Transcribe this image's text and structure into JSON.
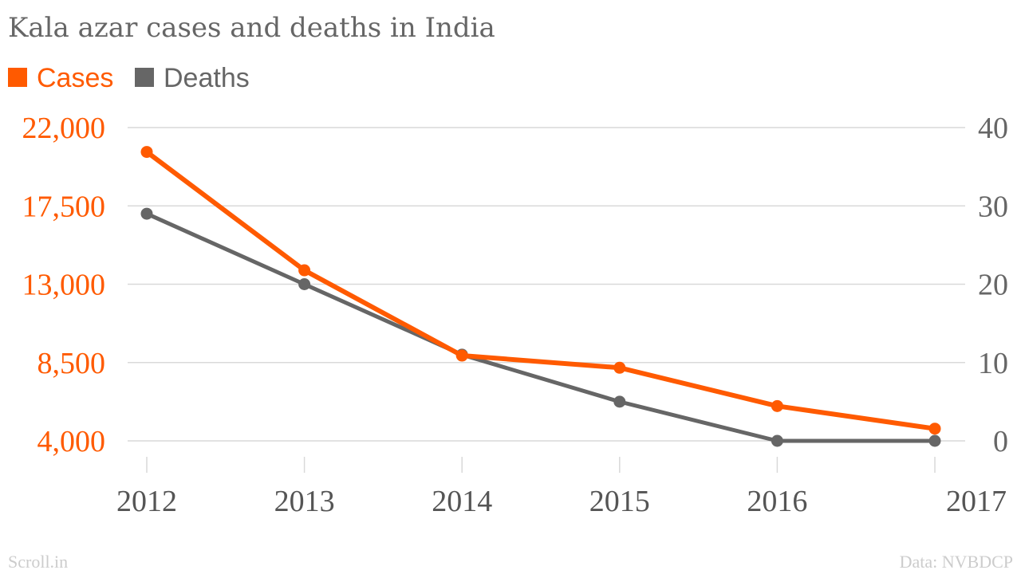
{
  "colors": {
    "cases": "#ff5a00",
    "deaths": "#666666",
    "grid": "#d9d9d9",
    "title": "#666666",
    "footer": "#cccccc"
  },
  "footer": {
    "source_brand": "Scroll.in",
    "data_source": "Data: NVBDCP"
  },
  "chart_data": {
    "type": "line",
    "title": "Kala azar cases and deaths in India",
    "categories": [
      "2012",
      "2013",
      "2014",
      "2015",
      "2016",
      "2017"
    ],
    "legend": [
      {
        "name": "Cases",
        "color": "#ff5a00"
      },
      {
        "name": "Deaths",
        "color": "#666666"
      }
    ],
    "series": [
      {
        "name": "Cases",
        "axis": "left",
        "values": [
          20600,
          13800,
          8900,
          8200,
          6000,
          4700
        ]
      },
      {
        "name": "Deaths",
        "axis": "right",
        "values": [
          29,
          20,
          11,
          5,
          0,
          0
        ]
      }
    ],
    "left_axis": {
      "min": 4000,
      "max": 22000,
      "ticks": [
        4000,
        8500,
        13000,
        17500,
        22000
      ],
      "tick_labels": [
        "4,000",
        "8,500",
        "13,000",
        "17,500",
        "22,000"
      ]
    },
    "right_axis": {
      "min": 0,
      "max": 40,
      "ticks": [
        0,
        10,
        20,
        30,
        40
      ],
      "tick_labels": [
        "0",
        "10",
        "20",
        "30",
        "40"
      ]
    },
    "grid": true
  }
}
